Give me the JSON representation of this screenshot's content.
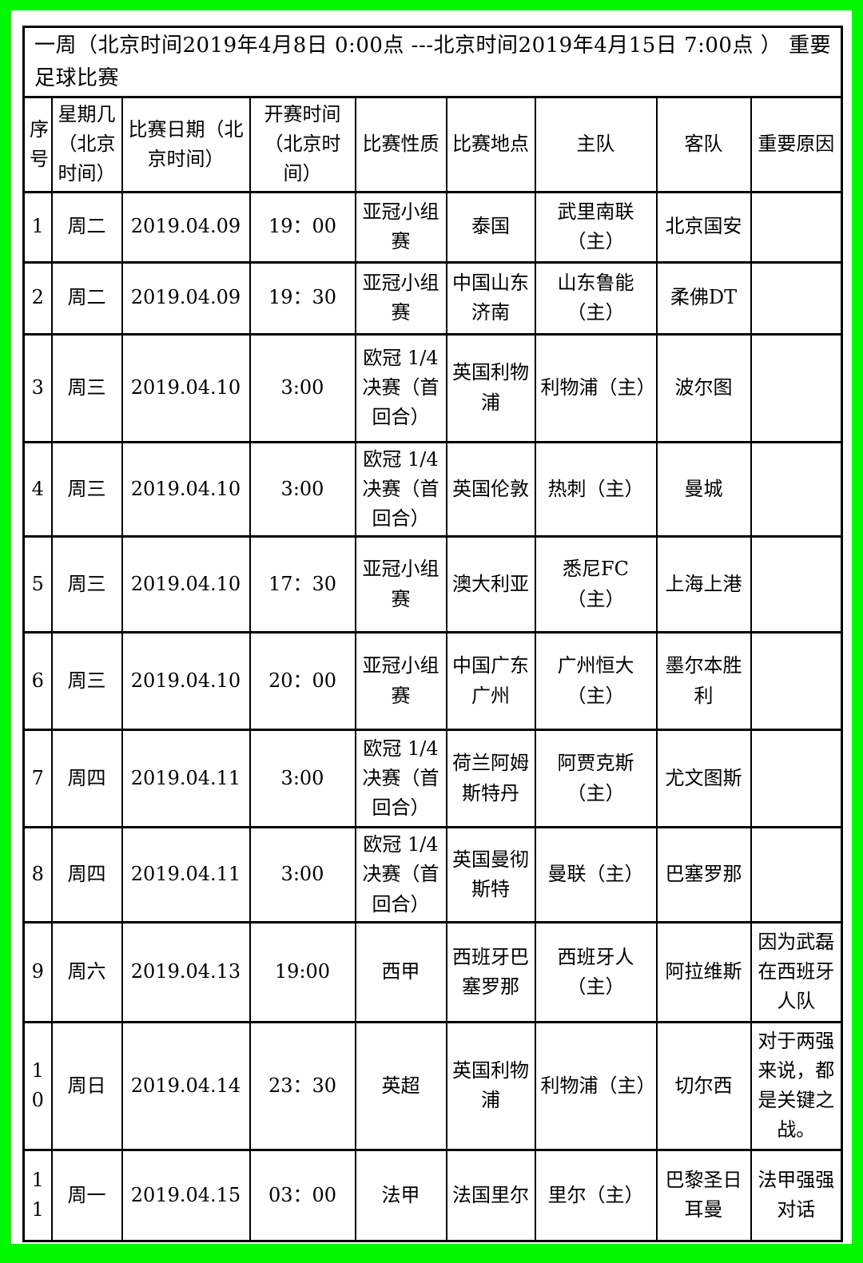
{
  "title": "一周（北京时间2019年4月8日 0:00点 ---北京时间2019年4月15日 7:00点 ）   重要足球比赛",
  "colors": {
    "frame_green": "#00f800",
    "table_border": "#000000",
    "paper_background": "#ffffff",
    "text": "#000000"
  },
  "table": {
    "col_keys": [
      "index",
      "weekday",
      "date",
      "time",
      "competition",
      "venue",
      "home-team",
      "away-team",
      "reason"
    ],
    "headers": [
      "序号",
      "星期几（北京时间）",
      "比赛日期（北京时间）",
      "开赛时间（北京时间）",
      "比赛性质",
      "比赛地点",
      "主队",
      "客队",
      "重要原因"
    ],
    "rows": [
      [
        "1",
        "周二",
        "2019.04.09",
        "19：00",
        "亚冠小组赛",
        "泰国",
        "武里南联（主）",
        "北京国安",
        ""
      ],
      [
        "2",
        "周二",
        "2019.04.09",
        "19：30",
        "亚冠小组赛",
        "中国山东济南",
        "山东鲁能（主）",
        "柔佛DT",
        ""
      ],
      [
        "3",
        "周三",
        "2019.04.10",
        "3:00",
        "欧冠 1/4决赛（首回合）",
        "英国利物浦",
        "利物浦（主）",
        "波尔图",
        ""
      ],
      [
        "4",
        "周三",
        "2019.04.10",
        "3:00",
        "欧冠 1/4决赛（首回合）",
        "英国伦敦",
        "热刺（主）",
        "曼城",
        ""
      ],
      [
        "5",
        "周三",
        "2019.04.10",
        "17：30",
        "亚冠小组赛",
        "澳大利亚",
        "悉尼FC（主）",
        "上海上港",
        ""
      ],
      [
        "6",
        "周三",
        "2019.04.10",
        "20：00",
        "亚冠小组赛",
        "中国广东广州",
        "广州恒大（主）",
        "墨尔本胜利",
        ""
      ],
      [
        "7",
        "周四",
        "2019.04.11",
        "3:00",
        "欧冠 1/4决赛（首回合）",
        "荷兰阿姆斯特丹",
        "阿贾克斯（主）",
        "尤文图斯",
        ""
      ],
      [
        "8",
        "周四",
        "2019.04.11",
        "3:00",
        "欧冠 1/4决赛（首回合）",
        "英国曼彻斯特",
        "曼联（主）",
        "巴塞罗那",
        ""
      ],
      [
        "9",
        "周六",
        "2019.04.13",
        "19:00",
        "西甲",
        "西班牙巴塞罗那",
        "西班牙人（主）",
        "阿拉维斯",
        "因为武磊在西班牙人队"
      ],
      [
        "10",
        "周日",
        "2019.04.14",
        "23：30",
        "英超",
        "英国利物浦",
        "利物浦（主）",
        "切尔西",
        "对于两强来说，都是关键之战。"
      ],
      [
        "11",
        "周一",
        "2019.04.15",
        "03：00",
        "法甲",
        "法国里尔",
        "里尔（主）",
        "巴黎圣日耳曼",
        "法甲强强对话"
      ]
    ]
  }
}
